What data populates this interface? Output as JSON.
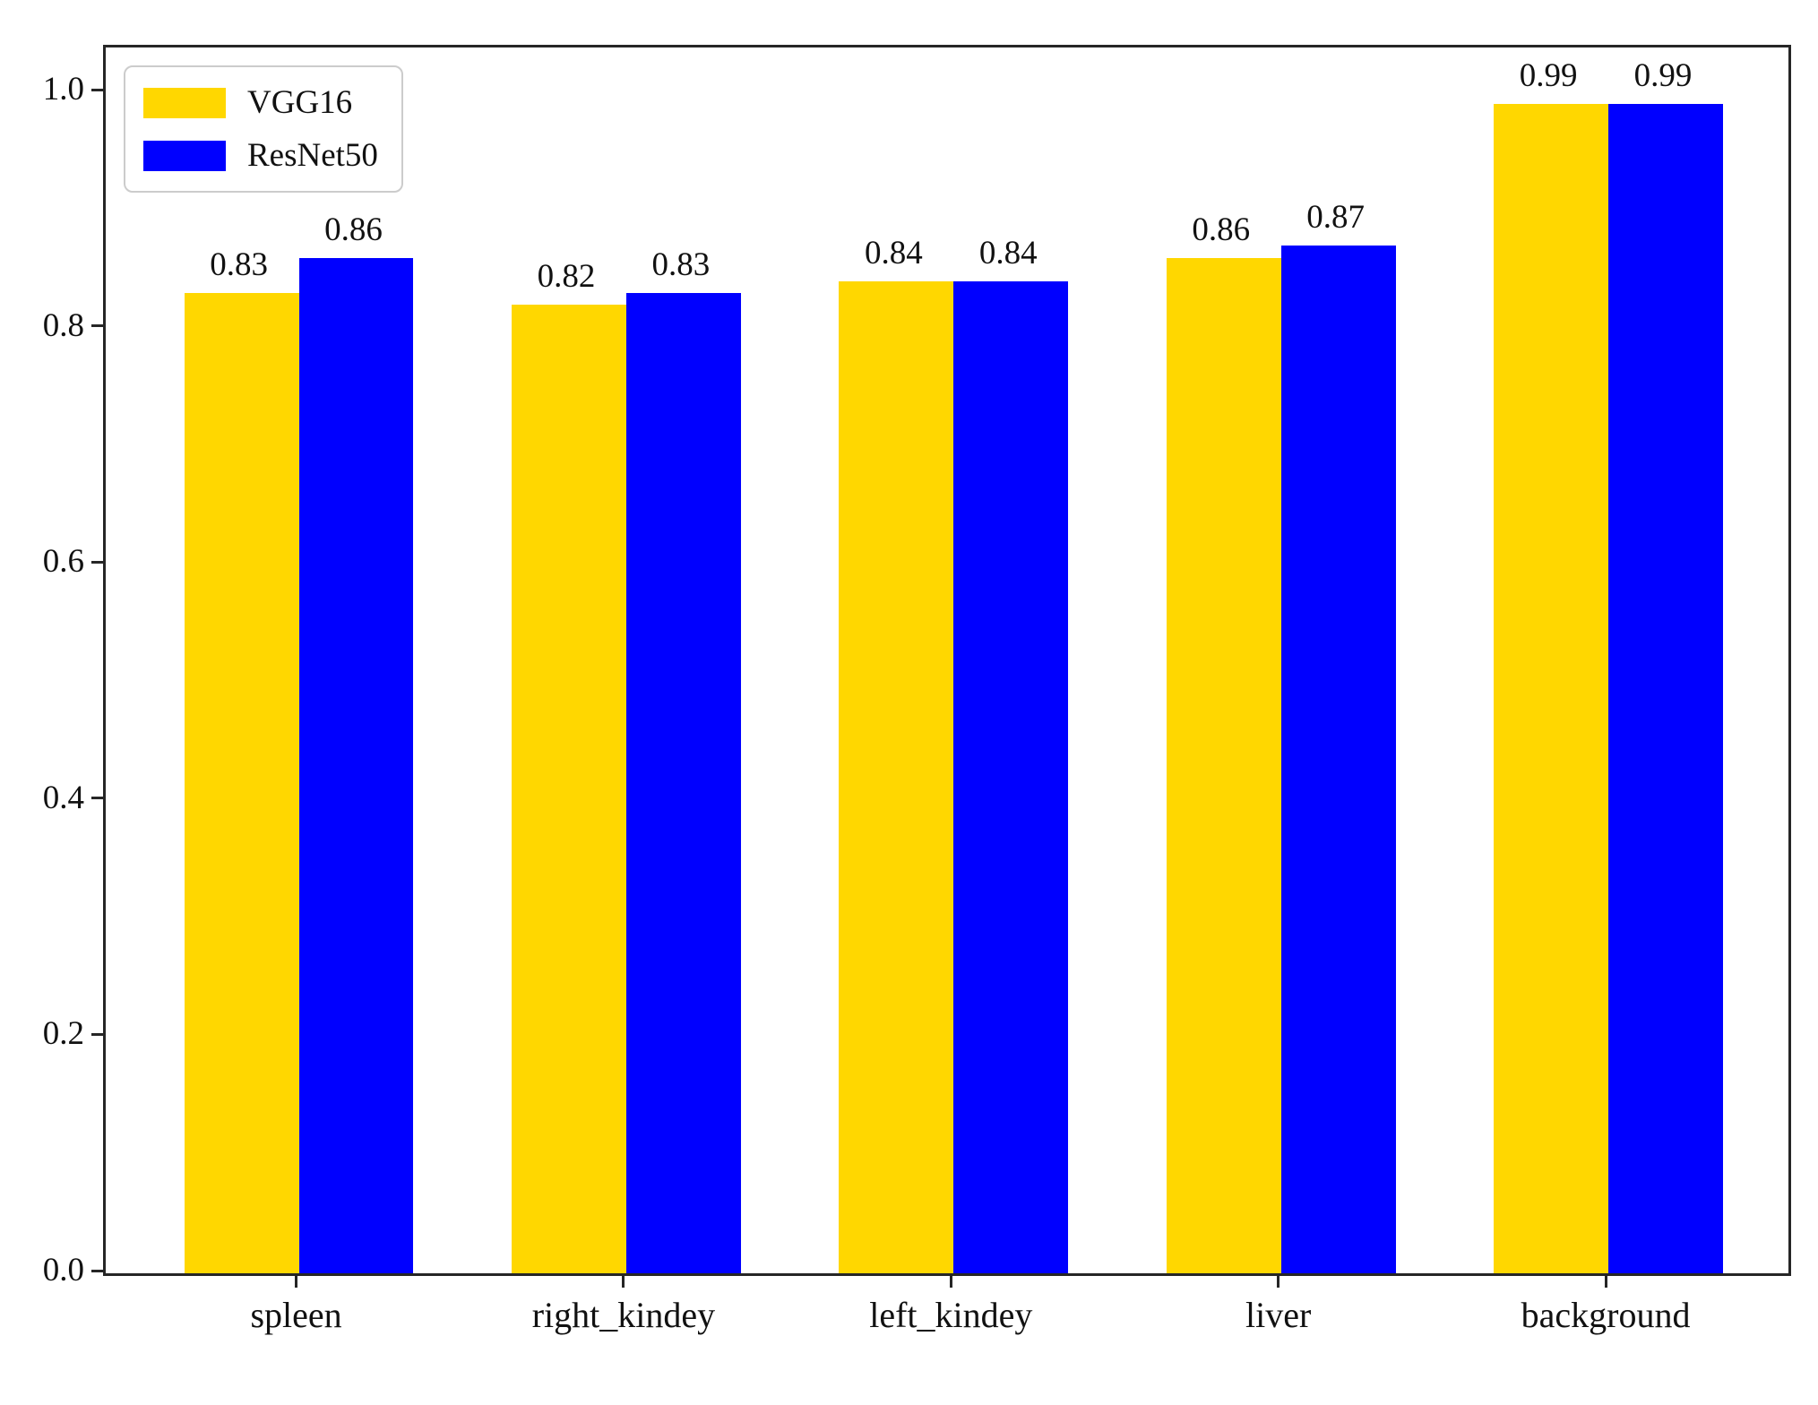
{
  "chart_data": {
    "type": "bar",
    "categories": [
      "spleen",
      "right_kindey",
      "left_kindey",
      "liver",
      "background"
    ],
    "series": [
      {
        "name": "VGG16",
        "color": "#FFD700",
        "values": [
          0.83,
          0.82,
          0.84,
          0.86,
          0.99
        ]
      },
      {
        "name": "ResNet50",
        "color": "#0000FF",
        "values": [
          0.86,
          0.83,
          0.84,
          0.87,
          0.99
        ]
      }
    ],
    "title": "",
    "xlabel": "",
    "ylabel": "",
    "ylim": [
      0.0,
      1.038
    ],
    "yticks": [
      0.0,
      0.2,
      0.4,
      0.6,
      0.8,
      1.0
    ],
    "ytick_labels": [
      "0.0",
      "0.2",
      "0.4",
      "0.6",
      "0.8",
      "1.0"
    ],
    "bar_value_labels": {
      "VGG16": [
        "0.83",
        "0.82",
        "0.84",
        "0.86",
        "0.99"
      ],
      "ResNet50": [
        "0.86",
        "0.83",
        "0.84",
        "0.87",
        "0.99"
      ]
    },
    "legend_position": "upper left",
    "grid": false
  },
  "colors": {
    "axis": "#262626",
    "text": "#111111",
    "legend_border": "#cccccc",
    "background": "#ffffff"
  }
}
